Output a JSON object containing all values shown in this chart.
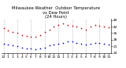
{
  "title": "Milwaukee Weather  Outdoor Temperature\nvs Dew Point\n(24 Hours)",
  "hours": [
    0,
    1,
    2,
    3,
    4,
    5,
    6,
    7,
    8,
    9,
    10,
    11,
    12,
    13,
    14,
    15,
    16,
    17,
    18,
    19,
    20,
    21,
    22,
    23
  ],
  "temp": [
    40,
    38,
    36,
    35,
    33,
    32,
    31,
    31,
    33,
    36,
    39,
    42,
    44,
    45,
    44,
    43,
    42,
    40,
    39,
    42,
    44,
    43,
    42,
    41
  ],
  "dew": [
    24,
    23,
    22,
    21,
    20,
    19,
    19,
    18,
    19,
    20,
    22,
    23,
    24,
    25,
    26,
    26,
    25,
    24,
    23,
    24,
    25,
    25,
    24,
    23
  ],
  "temp_color": "#cc0000",
  "dew_color": "#0000cc",
  "bg_color": "#ffffff",
  "grid_color": "#999999",
  "ylim": [
    14,
    50
  ],
  "yticks": [
    14,
    21,
    28,
    35,
    42,
    49
  ],
  "ytick_labels": [
    "14",
    "21",
    "28",
    "35",
    "42",
    "49"
  ],
  "xlabel_hours": [
    "12",
    "1",
    "2",
    "3",
    "4",
    "5",
    "6",
    "7",
    "8",
    "9",
    "10",
    "11",
    "12",
    "1",
    "2",
    "3",
    "4",
    "5",
    "6",
    "7",
    "8",
    "9",
    "10",
    "11"
  ],
  "vgrid_positions": [
    0,
    3,
    6,
    9,
    12,
    15,
    18,
    21
  ],
  "dot_size": 1.5,
  "title_fontsize": 3.8,
  "tick_fontsize": 3.2,
  "fig_width": 1.6,
  "fig_height": 0.87,
  "dpi": 100
}
